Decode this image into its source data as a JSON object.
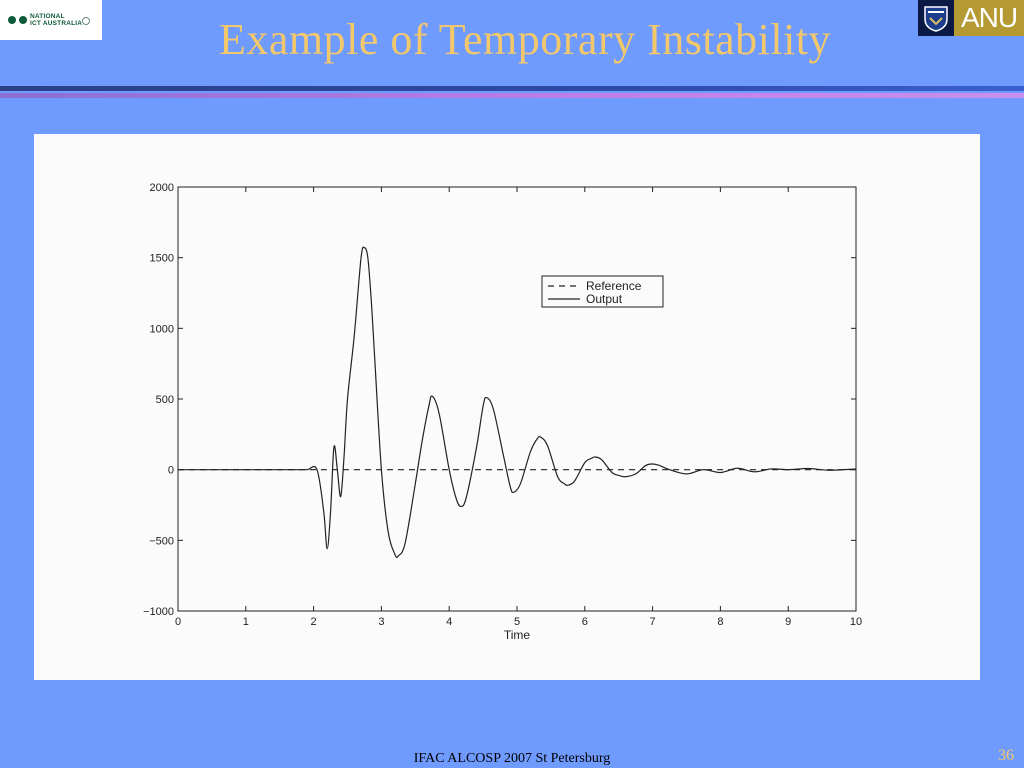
{
  "slide": {
    "title": "Example of Temporary Instability",
    "footer": "IFAC ALCOSP 2007 St Petersburg",
    "page_number": "36",
    "title_color": "#f3c76c",
    "background_color": "#6f9bff"
  },
  "logos": {
    "left": {
      "line1": "NATIONAL",
      "line2": "ICT AUSTRALIA",
      "icon": "nicta-logo-icon"
    },
    "right": {
      "text": "ANU",
      "icon": "anu-crest-icon"
    }
  },
  "chart_data": {
    "type": "line",
    "title": "",
    "xlabel": "Time",
    "ylabel": "",
    "xlim": [
      0,
      10
    ],
    "ylim": [
      -1000,
      2000
    ],
    "xticks": [
      0,
      1,
      2,
      3,
      4,
      5,
      6,
      7,
      8,
      9,
      10
    ],
    "yticks": [
      -1000,
      -500,
      0,
      500,
      1000,
      1500,
      2000
    ],
    "ytick_labels": [
      "−1000",
      "−500",
      "0",
      "500",
      "1000",
      "1500",
      "2000"
    ],
    "grid": false,
    "legend_position": "upper-right",
    "series": [
      {
        "name": "Reference",
        "style": "dashed",
        "x": [
          0,
          10
        ],
        "y": [
          0,
          0
        ]
      },
      {
        "name": "Output",
        "style": "solid",
        "x": [
          0,
          1.7,
          1.9,
          2.05,
          2.15,
          2.2,
          2.25,
          2.3,
          2.35,
          2.4,
          2.45,
          2.5,
          2.6,
          2.7,
          2.75,
          2.8,
          2.85,
          2.9,
          3.0,
          3.1,
          3.2,
          3.25,
          3.35,
          3.5,
          3.6,
          3.7,
          3.75,
          3.85,
          4.0,
          4.1,
          4.17,
          4.25,
          4.4,
          4.5,
          4.55,
          4.65,
          4.8,
          4.9,
          4.95,
          5.05,
          5.2,
          5.3,
          5.35,
          5.45,
          5.6,
          5.7,
          5.75,
          5.85,
          6.0,
          6.1,
          6.15,
          6.25,
          6.4,
          6.5,
          6.6,
          6.75,
          6.9,
          7.0,
          7.1,
          7.25,
          7.5,
          7.75,
          8.0,
          8.25,
          8.5,
          8.75,
          9.0,
          9.3,
          9.6,
          10.0
        ],
        "y": [
          0,
          0,
          0,
          0,
          -300,
          -560,
          -300,
          160,
          0,
          -190,
          100,
          500,
          950,
          1500,
          1570,
          1500,
          1200,
          800,
          0,
          -440,
          -600,
          -610,
          -520,
          -100,
          200,
          450,
          520,
          400,
          0,
          -200,
          -260,
          -200,
          150,
          450,
          510,
          430,
          100,
          -120,
          -160,
          -100,
          130,
          220,
          230,
          170,
          -50,
          -100,
          -110,
          -80,
          50,
          80,
          90,
          70,
          -20,
          -40,
          -50,
          -30,
          30,
          40,
          30,
          0,
          -30,
          0,
          -20,
          10,
          -15,
          5,
          0,
          8,
          -4,
          5
        ]
      }
    ]
  }
}
